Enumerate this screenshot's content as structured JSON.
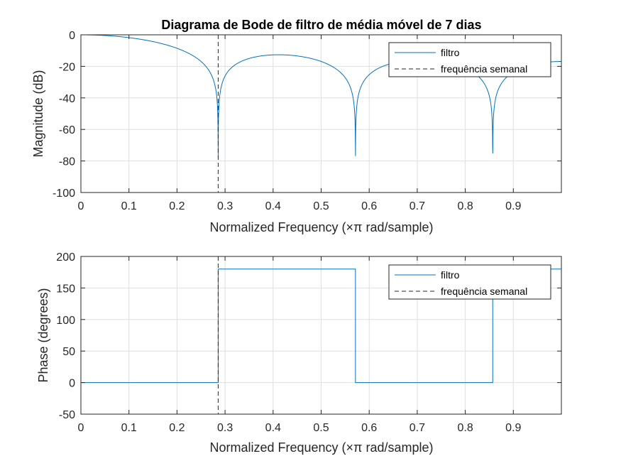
{
  "colors": {
    "filtro": "#0072BD",
    "semanal": "#262626",
    "grid": "#dfdfdf",
    "axes": "#262626"
  },
  "chart_data": [
    {
      "type": "line",
      "title": "Diagrama de Bode de filtro de média móvel de 7 dias",
      "xlabel": "Normalized Frequency  (×π rad/sample)",
      "ylabel": "Magnitude (dB)",
      "xlim": [
        0,
        1
      ],
      "ylim": [
        -100,
        0
      ],
      "xticks": [
        "0",
        "0.1",
        "0.2",
        "0.3",
        "0.4",
        "0.5",
        "0.6",
        "0.7",
        "0.8",
        "0.9"
      ],
      "yticks": [
        "0",
        "-20",
        "-40",
        "-60",
        "-80",
        "-100"
      ],
      "grid": true,
      "legend_position": "top-right",
      "series": [
        {
          "name": "filtro",
          "kind": "moving-average-magnitude",
          "taps": 7
        },
        {
          "name": "frequência semanal",
          "kind": "vertical-dashed",
          "x": 0.2857
        }
      ]
    },
    {
      "type": "line",
      "title": "",
      "xlabel": "Normalized Frequency  (×π rad/sample)",
      "ylabel": "Phase (degrees)",
      "xlim": [
        0,
        1
      ],
      "ylim": [
        -50,
        200
      ],
      "xticks": [
        "0",
        "0.1",
        "0.2",
        "0.3",
        "0.4",
        "0.5",
        "0.6",
        "0.7",
        "0.8",
        "0.9"
      ],
      "yticks": [
        "200",
        "150",
        "100",
        "50",
        "0",
        "-50"
      ],
      "grid": true,
      "legend_position": "top-right",
      "series": [
        {
          "name": "filtro",
          "kind": "step",
          "x": [
            0,
            0.2857,
            0.2857,
            0.5714,
            0.5714,
            0.8571,
            0.8571,
            1
          ],
          "y": [
            0,
            0,
            180,
            180,
            0,
            0,
            180,
            180
          ]
        },
        {
          "name": "frequência semanal",
          "kind": "vertical-dashed",
          "x": 0.2857
        }
      ]
    }
  ]
}
